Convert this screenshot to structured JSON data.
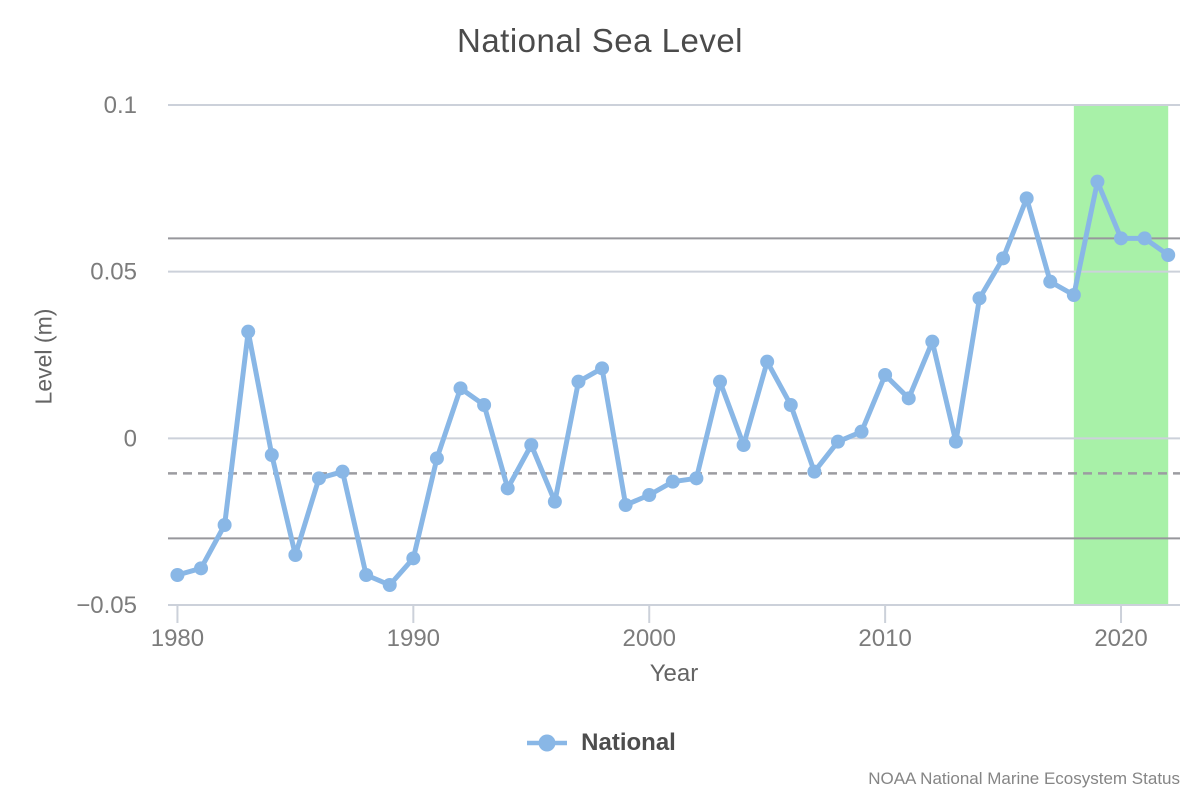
{
  "chart_data": {
    "type": "line",
    "title": "National Sea Level",
    "xlabel": "Year",
    "ylabel": "Level (m)",
    "x": [
      1980,
      1981,
      1982,
      1983,
      1984,
      1985,
      1986,
      1987,
      1988,
      1989,
      1990,
      1991,
      1992,
      1993,
      1994,
      1995,
      1996,
      1997,
      1998,
      1999,
      2000,
      2001,
      2002,
      2003,
      2004,
      2005,
      2006,
      2007,
      2008,
      2009,
      2010,
      2011,
      2012,
      2013,
      2014,
      2015,
      2016,
      2017,
      2018,
      2019,
      2020,
      2021,
      2022
    ],
    "series": [
      {
        "name": "National",
        "values": [
          -0.041,
          -0.039,
          -0.026,
          0.032,
          -0.005,
          -0.035,
          -0.012,
          -0.01,
          -0.041,
          -0.044,
          -0.036,
          -0.006,
          0.015,
          0.01,
          -0.015,
          -0.002,
          -0.019,
          0.017,
          0.021,
          -0.02,
          -0.017,
          -0.013,
          -0.012,
          0.017,
          -0.002,
          0.023,
          0.01,
          -0.01,
          -0.001,
          0.002,
          0.019,
          0.012,
          0.029,
          -0.001,
          0.042,
          0.054,
          0.072,
          0.047,
          0.043,
          0.077,
          0.06,
          0.06,
          0.055
        ]
      }
    ],
    "xlim": [
      1979.6,
      2022.5
    ],
    "ylim": [
      -0.05,
      0.1
    ],
    "xticks": [
      {
        "value": 1980,
        "label": "1980"
      },
      {
        "value": 1990,
        "label": "1990"
      },
      {
        "value": 2000,
        "label": "2000"
      },
      {
        "value": 2010,
        "label": "2010"
      },
      {
        "value": 2020,
        "label": "2020"
      }
    ],
    "yticks": [
      {
        "value": 0.1,
        "label": "0.1"
      },
      {
        "value": 0.05,
        "label": "0.05"
      },
      {
        "value": 0,
        "label": "0"
      },
      {
        "value": -0.05,
        "label": "−0.05"
      }
    ],
    "reference_lines": {
      "mean_dashed": -0.0105,
      "upper_solid": 0.06,
      "lower_solid": -0.03
    },
    "highlight_band": {
      "x_start": 2018,
      "x_end": 2022
    },
    "grid": true,
    "legend_position": "bottom-center",
    "colors": {
      "series": "#89b7e6",
      "band": "#a8f1a8",
      "grid": "#ccd1da",
      "reference": "#97979c",
      "reference_dashed": "#9c9ca1"
    }
  },
  "legend": {
    "label": "National"
  },
  "footer": {
    "attribution": "NOAA National Marine Ecosystem Status"
  }
}
